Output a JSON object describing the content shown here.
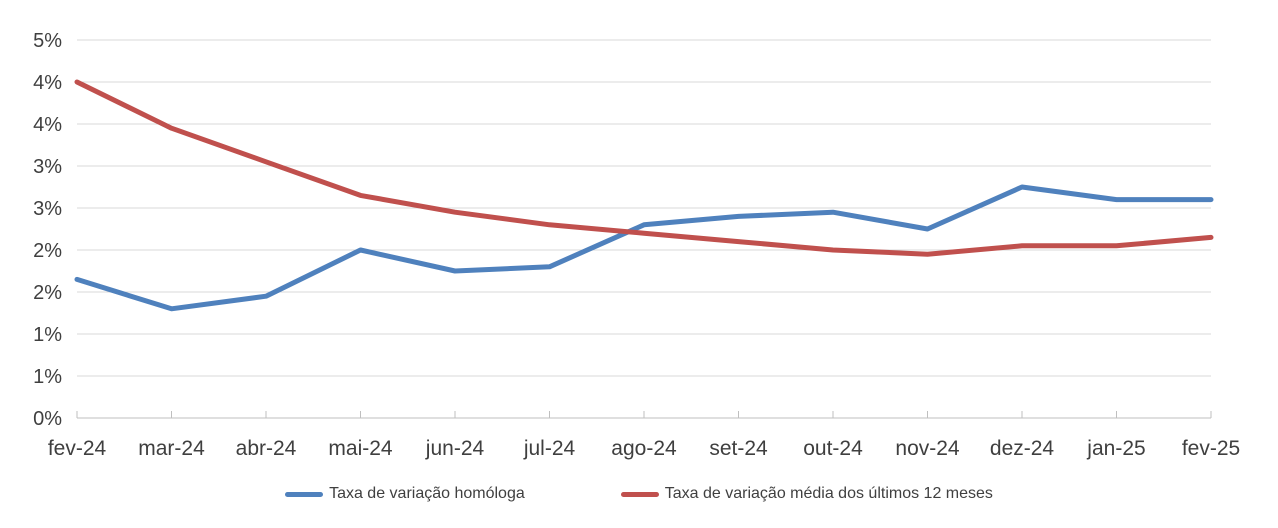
{
  "chart_data": {
    "type": "line",
    "title": "",
    "xlabel": "",
    "ylabel": "",
    "categories": [
      "fev-24",
      "mar-24",
      "abr-24",
      "mai-24",
      "jun-24",
      "jul-24",
      "ago-24",
      "set-24",
      "out-24",
      "nov-24",
      "dez-24",
      "jan-25",
      "fev-25"
    ],
    "series": [
      {
        "id": "homologa",
        "name": "Taxa de variação homóloga",
        "color": "#4F81BD",
        "values": [
          1.65,
          1.3,
          1.45,
          2.0,
          1.75,
          1.8,
          2.3,
          2.4,
          2.45,
          2.25,
          2.75,
          2.6,
          2.6
        ]
      },
      {
        "id": "media-12-meses",
        "name": "Taxa de variação média dos últimos 12 meses",
        "color": "#C0504D",
        "values": [
          4.0,
          3.45,
          3.05,
          2.65,
          2.45,
          2.3,
          2.2,
          2.1,
          2.0,
          1.95,
          2.05,
          2.05,
          2.15
        ]
      }
    ],
    "y_axis": {
      "min": 0,
      "max": 4.5,
      "step": 0.5,
      "tick_labels_top_to_bottom": [
        "5%",
        "4%",
        "4%",
        "3%",
        "3%",
        "2%",
        "2%",
        "1%",
        "1%",
        "0%"
      ],
      "format": "percent-rounded-integer"
    },
    "grid": true,
    "legend_position": "bottom",
    "colors": {
      "gridline": "#D9D9D9",
      "axis_line": "#BFBFBF",
      "tick_text": "#3F3F3F",
      "legend_text": "#404040",
      "background": "#FFFFFF"
    }
  }
}
